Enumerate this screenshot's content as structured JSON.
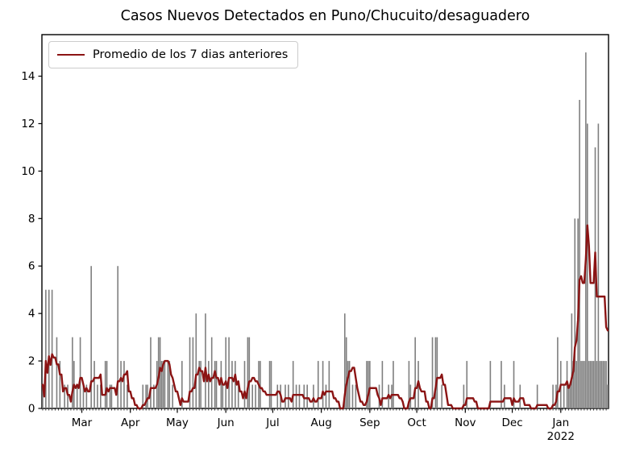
{
  "chart_data": {
    "type": "bar+line",
    "title": "Casos Nuevos Detectados en Puno/Chucuito/desaguadero",
    "xlabel": "",
    "ylabel": "",
    "background_color": "#ffffff",
    "bar_color": "#7f7f7f",
    "line_color": "#8b1414",
    "axis_color": "#000000",
    "ylim": [
      0,
      15.75
    ],
    "yticks": [
      0,
      2,
      4,
      6,
      8,
      10,
      12,
      14
    ],
    "legend": {
      "label": "Promedio de los 7 dias anteriores",
      "position": "upper left"
    },
    "line": {
      "label": "Promedio de los 7 dias anteriores",
      "window_days": 7
    },
    "month_ticks": [
      {
        "label": "Mar",
        "day_index": 25
      },
      {
        "label": "Apr",
        "day_index": 56
      },
      {
        "label": "May",
        "day_index": 86
      },
      {
        "label": "Jun",
        "day_index": 117
      },
      {
        "label": "Jul",
        "day_index": 147
      },
      {
        "label": "Aug",
        "day_index": 178
      },
      {
        "label": "Sep",
        "day_index": 209
      },
      {
        "label": "Oct",
        "day_index": 239
      },
      {
        "label": "Nov",
        "day_index": 270
      },
      {
        "label": "Dec",
        "day_index": 300
      },
      {
        "label": "Jan",
        "day_index": 331,
        "sublabel": "2022"
      }
    ],
    "minor_tick_every_days": 2,
    "daily_values": [
      1,
      0,
      5,
      0,
      5,
      0,
      5,
      0,
      0,
      3,
      0,
      2,
      0,
      0,
      1,
      0,
      1,
      0,
      0,
      3,
      2,
      0,
      1,
      0,
      3,
      0,
      1,
      0,
      1,
      0,
      0,
      6,
      0,
      2,
      0,
      1,
      0,
      1,
      0,
      0,
      2,
      2,
      0,
      1,
      1,
      0,
      0,
      0,
      6,
      0,
      2,
      0,
      2,
      0,
      1,
      0,
      0,
      0,
      0,
      0,
      0,
      0,
      0,
      0,
      1,
      0,
      1,
      1,
      0,
      3,
      0,
      1,
      0,
      2,
      3,
      3,
      2,
      2,
      2,
      0,
      2,
      2,
      0,
      1,
      0,
      0,
      0,
      0,
      0,
      2,
      0,
      0,
      0,
      0,
      3,
      0,
      3,
      0,
      4,
      0,
      2,
      2,
      0,
      0,
      4,
      0,
      2,
      0,
      3,
      0,
      2,
      2,
      0,
      0,
      2,
      1,
      0,
      3,
      0,
      3,
      0,
      2,
      0,
      2,
      0,
      1,
      0,
      0,
      0,
      2,
      0,
      3,
      3,
      0,
      1,
      0,
      1,
      0,
      2,
      2,
      0,
      0,
      0,
      0,
      0,
      2,
      2,
      0,
      0,
      0,
      1,
      0,
      1,
      0,
      0,
      1,
      0,
      1,
      0,
      0,
      2,
      0,
      1,
      0,
      1,
      0,
      0,
      1,
      0,
      1,
      0,
      0,
      0,
      1,
      0,
      0,
      2,
      0,
      0,
      2,
      0,
      1,
      0,
      2,
      0,
      0,
      0,
      0,
      0,
      0,
      0,
      0,
      0,
      4,
      3,
      2,
      2,
      0,
      1,
      0,
      1,
      0,
      0,
      0,
      0,
      0,
      0,
      2,
      2,
      2,
      0,
      0,
      0,
      0,
      0,
      1,
      0,
      2,
      0,
      0,
      0,
      1,
      0,
      1,
      2,
      0,
      0,
      0,
      0,
      0,
      0,
      0,
      0,
      0,
      2,
      1,
      0,
      0,
      3,
      0,
      2,
      0,
      0,
      0,
      0,
      0,
      0,
      0,
      0,
      3,
      0,
      3,
      3,
      0,
      0,
      1,
      0,
      0,
      0,
      0,
      0,
      0,
      0,
      0,
      0,
      0,
      0,
      0,
      0,
      1,
      0,
      2,
      0,
      0,
      0,
      0,
      0,
      0,
      0,
      0,
      0,
      0,
      0,
      0,
      0,
      0,
      2,
      0,
      0,
      0,
      0,
      0,
      0,
      2,
      0,
      1,
      0,
      0,
      0,
      0,
      0,
      2,
      0,
      0,
      0,
      1,
      0,
      0,
      0,
      0,
      0,
      0,
      0,
      0,
      0,
      0,
      1,
      0,
      0,
      0,
      0,
      0,
      0,
      0,
      0,
      0,
      1,
      0,
      1,
      3,
      0,
      2,
      0,
      1,
      0,
      2,
      1,
      1,
      4,
      2,
      8,
      2,
      8,
      13,
      2,
      2,
      2,
      15,
      12,
      2,
      2,
      2,
      2,
      11,
      2,
      12,
      2,
      2,
      2,
      2,
      2,
      1
    ]
  }
}
